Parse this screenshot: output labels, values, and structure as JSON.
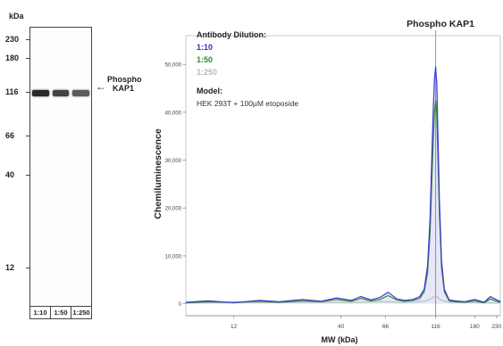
{
  "blot": {
    "unit_label": "kDa",
    "markers": [
      {
        "label": "230",
        "kda": 230
      },
      {
        "label": "180",
        "kda": 180
      },
      {
        "label": "116",
        "kda": 116
      },
      {
        "label": "66",
        "kda": 66
      },
      {
        "label": "40",
        "kda": 40
      },
      {
        "label": "12",
        "kda": 12
      }
    ],
    "band_label_line1": "Phospho",
    "band_label_line2": "KAP1",
    "band_kda": 116,
    "lanes": [
      "1:10",
      "1:50",
      "1:250"
    ],
    "arrow_glyph": "←"
  },
  "legend": {
    "heading": "Antibody Dilution:",
    "entries": [
      {
        "label": "1:10",
        "color": "#2b2bd0"
      },
      {
        "label": "1:50",
        "color": "#2e8b2e"
      },
      {
        "label": "1:250",
        "color": "#b8b8b8"
      }
    ],
    "model_heading": "Model:",
    "model_text": "HEK 293T + 100µM etoposide"
  },
  "chart_data": {
    "type": "line",
    "annotation": "Phospho KAP1",
    "annotation_x": 116,
    "xlabel": "MW (kDa)",
    "ylabel": "Chemiluminescence",
    "x_scale": "log",
    "xlim": [
      7,
      240
    ],
    "ylim": [
      -2500,
      56000
    ],
    "x_ticks": [
      {
        "label": "12",
        "value": 12
      },
      {
        "label": "40",
        "value": 40
      },
      {
        "label": "66",
        "value": 66
      },
      {
        "label": "116",
        "value": 116
      },
      {
        "label": "180",
        "value": 180
      },
      {
        "label": "230",
        "value": 230
      }
    ],
    "y_ticks": [
      {
        "label": "0",
        "value": 0
      },
      {
        "label": "10,000",
        "value": 10000
      },
      {
        "label": "20,000",
        "value": 20000
      },
      {
        "label": "30,000",
        "value": 30000
      },
      {
        "label": "40,000",
        "value": 40000
      },
      {
        "label": "50,000",
        "value": 50000
      }
    ],
    "series": [
      {
        "name": "1:10",
        "color": "#3b3bd6",
        "x": [
          7,
          9,
          12,
          16,
          20,
          26,
          32,
          38,
          45,
          50,
          56,
          62,
          68,
          75,
          82,
          90,
          97,
          102,
          106,
          109,
          111,
          113,
          114.5,
          116,
          117.5,
          119,
          121,
          124,
          128,
          135,
          145,
          160,
          180,
          200,
          215,
          230,
          240
        ],
        "y": [
          300,
          600,
          200,
          700,
          400,
          900,
          500,
          1200,
          700,
          1500,
          800,
          1300,
          2400,
          1000,
          700,
          900,
          1500,
          3000,
          8000,
          18000,
          30000,
          41000,
          47000,
          49500,
          46000,
          36000,
          22000,
          9000,
          3000,
          800,
          600,
          400,
          900,
          300,
          1500,
          800,
          500
        ]
      },
      {
        "name": "1:50",
        "color": "#2e8b2e",
        "x": [
          7,
          9,
          12,
          16,
          20,
          26,
          32,
          38,
          45,
          50,
          56,
          62,
          68,
          75,
          82,
          90,
          97,
          102,
          106,
          109,
          111,
          113,
          114.5,
          116,
          117.5,
          119,
          121,
          124,
          128,
          135,
          145,
          160,
          180,
          200,
          215,
          230,
          240
        ],
        "y": [
          200,
          400,
          300,
          500,
          300,
          600,
          400,
          900,
          500,
          1100,
          600,
          900,
          1700,
          800,
          500,
          700,
          1100,
          2500,
          6500,
          15000,
          25000,
          34500,
          40000,
          42500,
          39500,
          31000,
          19000,
          7500,
          2500,
          600,
          400,
          300,
          600,
          200,
          1000,
          500,
          300
        ]
      },
      {
        "name": "1:250",
        "color": "#bdbdbd",
        "x": [
          7,
          12,
          20,
          32,
          45,
          62,
          82,
          102,
          109,
          113,
          116,
          119,
          124,
          135,
          160,
          200,
          240
        ],
        "y": [
          150,
          200,
          250,
          300,
          250,
          400,
          300,
          500,
          900,
          1400,
          1600,
          1300,
          700,
          300,
          250,
          200,
          150
        ]
      }
    ]
  }
}
